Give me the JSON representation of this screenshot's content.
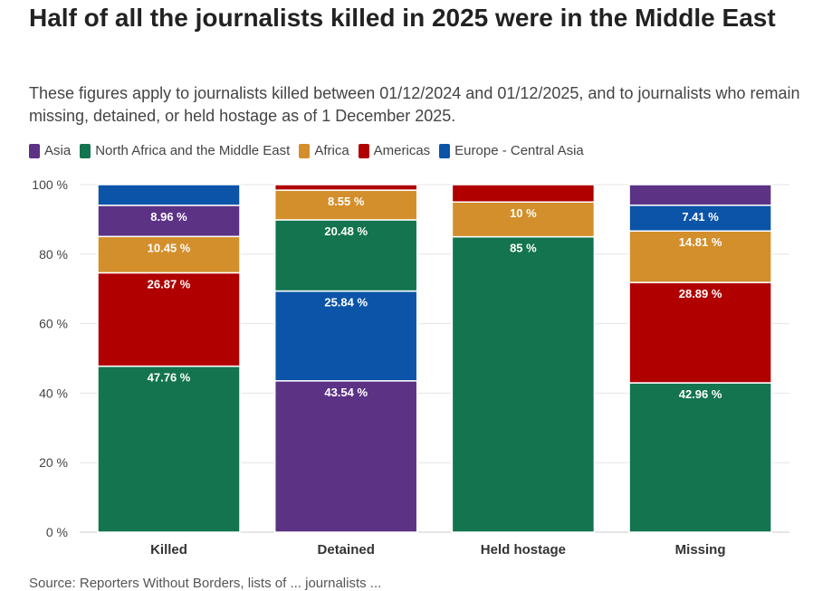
{
  "chart_data": {
    "type": "bar",
    "stacked": true,
    "title": "Half of all the journalists killed in 2025 were in the Middle East",
    "subtitle": "These figures apply to journalists killed between 01/12/2024 and 01/12/2025, and to journalists who remain missing, detained, or held hostage as of 1 December 2025.",
    "categories": [
      "Killed",
      "Detained",
      "Held hostage",
      "Missing"
    ],
    "series": [
      {
        "name": "Asia",
        "color": "#5c3285",
        "values": [
          8.96,
          43.54,
          0,
          5.93
        ]
      },
      {
        "name": "North Africa and the Middle East",
        "color": "#13744f",
        "values": [
          47.76,
          20.48,
          85,
          42.96
        ]
      },
      {
        "name": "Africa",
        "color": "#d38f2b",
        "values": [
          10.45,
          8.55,
          10,
          14.81
        ]
      },
      {
        "name": "Americas",
        "color": "#b00000",
        "values": [
          26.87,
          1.59,
          5,
          28.89
        ]
      },
      {
        "name": "Europe - Central Asia",
        "color": "#0b54a8",
        "values": [
          5.97,
          25.84,
          0,
          7.41
        ]
      }
    ],
    "ylim": [
      0,
      100
    ],
    "yticks": [
      "0 %",
      "20 %",
      "40 %",
      "60 %",
      "80 %",
      "100 %"
    ],
    "label_threshold": 7,
    "grid": true,
    "legend": "top-left",
    "xlabel": "",
    "ylabel": ""
  },
  "source": "Source: Reporters Without Borders, lists of ... journalists ..."
}
